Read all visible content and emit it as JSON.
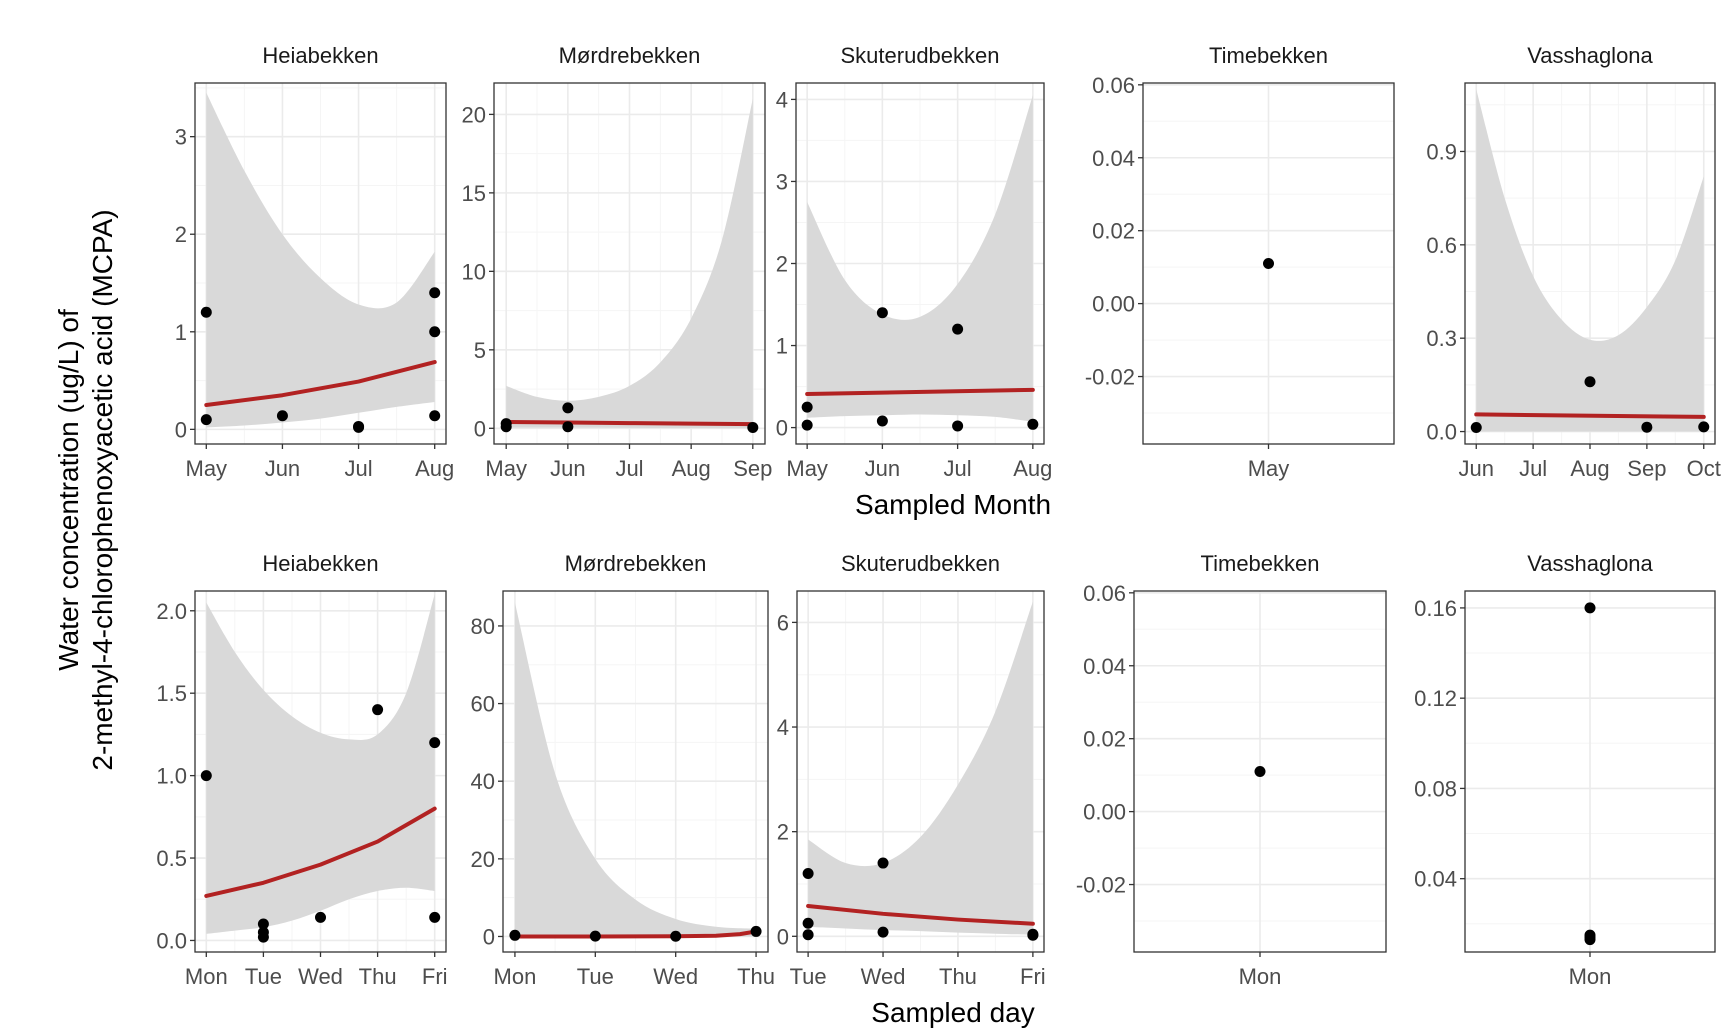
{
  "figure": {
    "ylabel_line1": "Water concentration (ug/L) of",
    "ylabel_line2": "2-methyl-4-chlorophenoxyacetic acid (MCPA)",
    "row_titles": [
      "Sampled Month",
      "Sampled day"
    ]
  },
  "colors": {
    "fit_line": "#b22222",
    "ribbon": "#d9d9d9",
    "points": "#000000",
    "grid_major": "#ebebeb",
    "grid_minor": "#f5f5f5",
    "panel_border": "#333333"
  },
  "chart_data": [
    {
      "type": "scatter",
      "title": "Heiabekken",
      "row": "Sampled Month",
      "categories": [
        "May",
        "Jun",
        "Jul",
        "Aug"
      ],
      "ylim": [
        -0.15,
        3.55
      ],
      "yticks": [
        0,
        1,
        2,
        3
      ],
      "ytick_labels": [
        "0",
        "1",
        "2",
        "3"
      ],
      "points": [
        [
          0,
          0.1
        ],
        [
          0,
          1.2
        ],
        [
          1,
          0.14
        ],
        [
          2,
          0.02
        ],
        [
          2,
          0.03
        ],
        [
          3,
          0.14
        ],
        [
          3,
          1.0
        ],
        [
          3,
          1.4
        ]
      ],
      "fit": {
        "x": [
          0,
          1,
          2,
          3
        ],
        "y": [
          0.25,
          0.35,
          0.49,
          0.69
        ]
      },
      "ribbon": {
        "x": [
          0,
          0.5,
          1,
          1.5,
          2,
          2.5,
          3
        ],
        "lo": [
          0.02,
          0.04,
          0.07,
          0.11,
          0.17,
          0.23,
          0.28
        ],
        "hi": [
          3.45,
          2.65,
          2.0,
          1.55,
          1.28,
          1.3,
          1.82
        ]
      }
    },
    {
      "type": "scatter",
      "title": "Mørdrebekken",
      "row": "Sampled Month",
      "categories": [
        "May",
        "Jun",
        "Jul",
        "Aug",
        "Sep"
      ],
      "ylim": [
        -1.0,
        22.0
      ],
      "yticks": [
        0,
        5,
        10,
        15,
        20
      ],
      "ytick_labels": [
        "0",
        "5",
        "10",
        "15",
        "20"
      ],
      "points": [
        [
          0,
          0.1
        ],
        [
          0,
          0.3
        ],
        [
          1,
          0.1
        ],
        [
          1,
          1.3
        ],
        [
          4,
          0.05
        ]
      ],
      "fit": {
        "x": [
          0,
          1,
          2,
          3,
          4
        ],
        "y": [
          0.4,
          0.37,
          0.33,
          0.3,
          0.27
        ]
      },
      "ribbon": {
        "x": [
          0,
          0.5,
          1,
          1.5,
          2,
          2.5,
          3,
          3.5,
          4
        ],
        "lo": [
          0.05,
          0.05,
          0.05,
          0.04,
          0.03,
          0.02,
          0.01,
          0.005,
          0.0
        ],
        "hi": [
          2.7,
          2.0,
          1.75,
          2.0,
          2.7,
          4.2,
          7.0,
          12.0,
          21.0
        ]
      }
    },
    {
      "type": "scatter",
      "title": "Skuterudbekken",
      "row": "Sampled Month",
      "categories": [
        "May",
        "Jun",
        "Jul",
        "Aug"
      ],
      "ylim": [
        -0.2,
        4.2
      ],
      "yticks": [
        0,
        1,
        2,
        3,
        4
      ],
      "ytick_labels": [
        "0",
        "1",
        "2",
        "3",
        "4"
      ],
      "points": [
        [
          0,
          0.03
        ],
        [
          0,
          0.25
        ],
        [
          1,
          0.08
        ],
        [
          1,
          1.4
        ],
        [
          2,
          0.02
        ],
        [
          2,
          1.2
        ],
        [
          3,
          0.04
        ]
      ],
      "fit": {
        "x": [
          0,
          3
        ],
        "y": [
          0.41,
          0.46
        ]
      },
      "ribbon": {
        "x": [
          0,
          0.5,
          1,
          1.5,
          2,
          2.5,
          3
        ],
        "lo": [
          0.12,
          0.14,
          0.15,
          0.16,
          0.15,
          0.13,
          0.07
        ],
        "hi": [
          2.75,
          1.8,
          1.38,
          1.35,
          1.75,
          2.6,
          4.05
        ]
      }
    },
    {
      "type": "scatter",
      "title": "Timebekken",
      "row": "Sampled Month",
      "categories": [
        "May"
      ],
      "ylim": [
        -0.0385,
        0.0605
      ],
      "yticks": [
        -0.02,
        0.0,
        0.02,
        0.04,
        0.06
      ],
      "ytick_labels": [
        "-0.02",
        "0.00",
        "0.02",
        "0.04",
        "0.06"
      ],
      "points": [
        [
          0,
          0.011
        ]
      ]
    },
    {
      "type": "scatter",
      "title": "Vasshaglona",
      "row": "Sampled Month",
      "categories": [
        "Jun",
        "Jul",
        "Aug",
        "Sep",
        "Oct"
      ],
      "ylim": [
        -0.04,
        1.12
      ],
      "yticks": [
        0,
        0.3,
        0.6,
        0.9
      ],
      "ytick_labels": [
        "0.0",
        "0.3",
        "0.6",
        "0.9"
      ],
      "points": [
        [
          0,
          0.013
        ],
        [
          2,
          0.16
        ],
        [
          3,
          0.014
        ],
        [
          4,
          0.015
        ]
      ],
      "fit": {
        "x": [
          0,
          4
        ],
        "y": [
          0.055,
          0.047
        ]
      },
      "ribbon": {
        "x": [
          0,
          0.5,
          1,
          1.5,
          2,
          2.5,
          3,
          3.5,
          4
        ],
        "lo": [
          0.0,
          0.0,
          0.0,
          0.0,
          0.0,
          0.0,
          0.0,
          0.0,
          0.0
        ],
        "hi": [
          1.1,
          0.75,
          0.5,
          0.36,
          0.295,
          0.31,
          0.4,
          0.55,
          0.82
        ]
      }
    },
    {
      "type": "scatter",
      "title": "Heiabekken",
      "row": "Sampled day",
      "categories": [
        "Mon",
        "Tue",
        "Wed",
        "Thu",
        "Fri"
      ],
      "ylim": [
        -0.07,
        2.12
      ],
      "yticks": [
        0,
        0.5,
        1.0,
        1.5,
        2.0
      ],
      "ytick_labels": [
        "0.0",
        "0.5",
        "1.0",
        "1.5",
        "2.0"
      ],
      "points": [
        [
          0,
          1.0
        ],
        [
          1,
          0.02
        ],
        [
          1,
          0.05
        ],
        [
          1,
          0.1
        ],
        [
          2,
          0.14
        ],
        [
          3,
          1.4
        ],
        [
          4,
          0.14
        ],
        [
          4,
          1.2
        ]
      ],
      "fit": {
        "x": [
          0,
          1,
          2,
          3,
          4
        ],
        "y": [
          0.27,
          0.35,
          0.46,
          0.6,
          0.8
        ]
      },
      "ribbon": {
        "x": [
          0,
          0.5,
          1,
          1.5,
          2,
          2.5,
          3,
          3.5,
          4
        ],
        "lo": [
          0.04,
          0.06,
          0.08,
          0.12,
          0.18,
          0.25,
          0.3,
          0.32,
          0.3
        ],
        "hi": [
          2.05,
          1.75,
          1.52,
          1.36,
          1.26,
          1.22,
          1.25,
          1.5,
          2.1
        ]
      }
    },
    {
      "type": "scatter",
      "title": "Mørdrebekken",
      "row": "Sampled day",
      "categories": [
        "Mon",
        "Tue",
        "Wed",
        "Thu"
      ],
      "ylim": [
        -4.0,
        89.0
      ],
      "yticks": [
        0,
        20,
        40,
        60,
        80
      ],
      "ytick_labels": [
        "0",
        "20",
        "40",
        "60",
        "80"
      ],
      "points": [
        [
          0,
          0.3
        ],
        [
          1,
          0.1
        ],
        [
          2,
          0.05
        ],
        [
          3,
          1.3
        ]
      ],
      "fit": {
        "x": [
          0,
          1,
          2,
          2.5,
          2.8,
          3
        ],
        "y": [
          0.0,
          0.0,
          0.05,
          0.2,
          0.6,
          1.3
        ]
      },
      "ribbon": {
        "x": [
          0,
          0.5,
          1,
          1.5,
          2,
          2.5,
          3
        ],
        "lo": [
          0.0,
          0.0,
          0.0,
          0.0,
          0.0,
          0.0,
          0.0
        ],
        "hi": [
          86.0,
          42.0,
          20.0,
          9.5,
          4.5,
          2.5,
          2.0
        ]
      }
    },
    {
      "type": "scatter",
      "title": "Skuterudbekken",
      "row": "Sampled day",
      "categories": [
        "Tue",
        "Wed",
        "Thu",
        "Fri"
      ],
      "ylim": [
        -0.3,
        6.6
      ],
      "yticks": [
        0,
        2,
        4,
        6
      ],
      "ytick_labels": [
        "0",
        "2",
        "4",
        "6"
      ],
      "points": [
        [
          0,
          0.03
        ],
        [
          0,
          0.25
        ],
        [
          0,
          1.2
        ],
        [
          1,
          0.08
        ],
        [
          1,
          1.4
        ],
        [
          3,
          0.02
        ],
        [
          3,
          0.04
        ]
      ],
      "fit": {
        "x": [
          0,
          1,
          2,
          3
        ],
        "y": [
          0.58,
          0.43,
          0.32,
          0.24
        ]
      },
      "ribbon": {
        "x": [
          0,
          0.5,
          1,
          1.5,
          2,
          2.5,
          3
        ],
        "lo": [
          0.18,
          0.15,
          0.12,
          0.1,
          0.07,
          0.05,
          0.03
        ],
        "hi": [
          1.85,
          1.4,
          1.4,
          1.9,
          2.9,
          4.3,
          6.4
        ]
      }
    },
    {
      "type": "scatter",
      "title": "Timebekken",
      "row": "Sampled day",
      "categories": [
        "Mon"
      ],
      "ylim": [
        -0.0385,
        0.0605
      ],
      "yticks": [
        -0.02,
        0.0,
        0.02,
        0.04,
        0.06
      ],
      "ytick_labels": [
        "-0.02",
        "0.00",
        "0.02",
        "0.04",
        "0.06"
      ],
      "points": [
        [
          0,
          0.011
        ]
      ]
    },
    {
      "type": "scatter",
      "title": "Vasshaglona",
      "row": "Sampled day",
      "categories": [
        "Mon"
      ],
      "ylim": [
        0.0075,
        0.1675
      ],
      "yticks": [
        0.04,
        0.08,
        0.12,
        0.16
      ],
      "ytick_labels": [
        "0.04",
        "0.08",
        "0.12",
        "0.16"
      ],
      "points": [
        [
          0,
          0.16
        ],
        [
          0,
          0.013
        ],
        [
          0,
          0.014
        ],
        [
          0,
          0.015
        ]
      ]
    }
  ]
}
